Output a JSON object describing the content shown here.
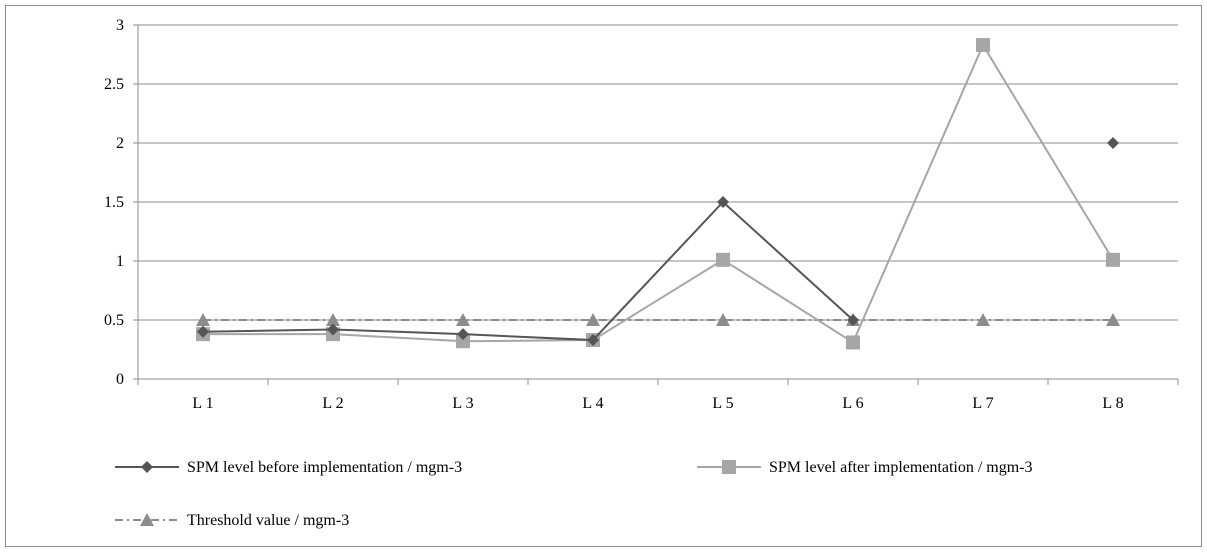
{
  "chart_data": {
    "type": "line",
    "title": "",
    "xlabel": "",
    "ylabel": "",
    "categories": [
      "L 1",
      "L 2",
      "L 3",
      "L 4",
      "L 5",
      "L 6",
      "L 7",
      "L 8"
    ],
    "ylim": [
      0,
      3
    ],
    "yticks": [
      "0",
      "0.5",
      "1",
      "1.5",
      "2",
      "2.5",
      "3"
    ],
    "grid": true,
    "legend_position": "bottom",
    "series": [
      {
        "name": "SPM level before implementation / mgm-3",
        "values": [
          0.4,
          0.42,
          0.38,
          0.33,
          1.5,
          0.5,
          null,
          2.0
        ],
        "color": "#555555",
        "marker": "diamond",
        "dash": "solid"
      },
      {
        "name": "SPM level after implementation / mgm-3",
        "values": [
          0.38,
          0.38,
          0.32,
          0.33,
          1.01,
          0.31,
          2.83,
          1.01
        ],
        "color": "#a6a6a6",
        "marker": "square",
        "dash": "solid"
      },
      {
        "name": "Threshold value / mgm-3",
        "values": [
          0.5,
          0.5,
          0.5,
          0.5,
          0.5,
          0.5,
          0.5,
          0.5
        ],
        "color": "#8c8c8c",
        "marker": "triangle",
        "dash": "dashdot"
      }
    ]
  }
}
